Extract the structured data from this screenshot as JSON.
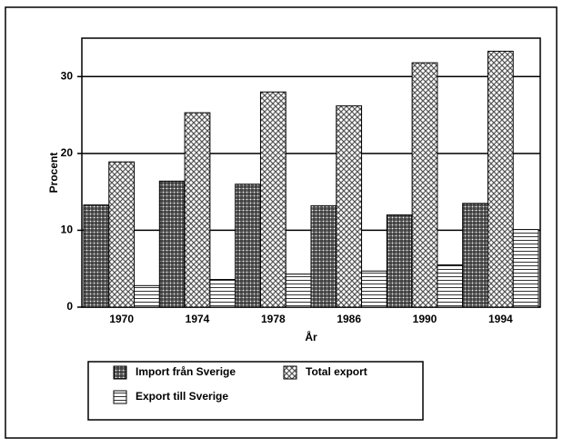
{
  "chart_data": {
    "type": "bar",
    "x_label": "År",
    "y_label": "Procent",
    "categories": [
      "1970",
      "1974",
      "1978",
      "1986",
      "1990",
      "1994"
    ],
    "series": [
      {
        "name": "Import från Sverige",
        "color": "#222222",
        "values": [
          13.3,
          16.4,
          16.0,
          13.2,
          12.0,
          13.5
        ]
      },
      {
        "name": "Total export",
        "color": "#555555",
        "values": [
          18.9,
          25.3,
          28.0,
          26.2,
          31.8,
          33.3
        ]
      },
      {
        "name": "Export till Sverige",
        "color": "#333333",
        "values": [
          2.8,
          3.6,
          4.3,
          4.7,
          5.5,
          10.1
        ]
      }
    ],
    "ylim": [
      0,
      35
    ],
    "yticks": [
      0,
      10,
      20,
      30
    ],
    "grid": true
  }
}
